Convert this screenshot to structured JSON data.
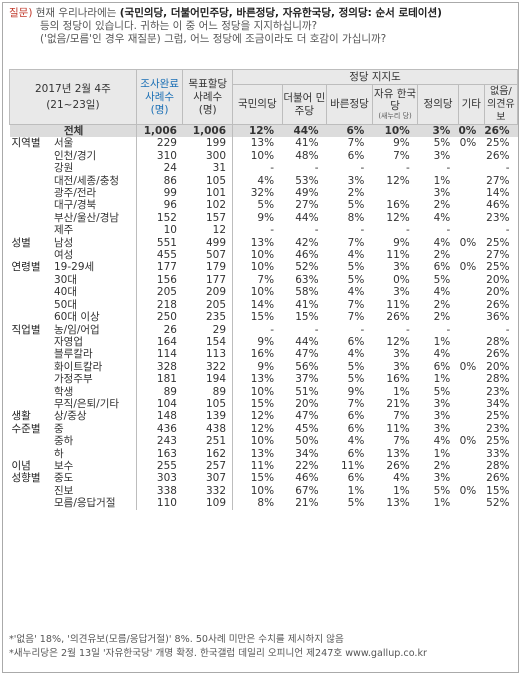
{
  "question": {
    "label": "질문)",
    "line1_pre": "현재 우리나라에는 ",
    "line1_strong": "(국민의당, 더불어민주당, 바른정당, 자유한국당, 정의당: 순서 로테이션)",
    "line2": "등의 정당이 있습니다. 귀하는 이 중 어느 정당을 지지하십니까?",
    "line3": "('없음/모름'인 경우 재질문) 그럼, 어느 정당에 조금이라도 더 호감이 가십니까?"
  },
  "header": {
    "date": "2017년 2월 4주",
    "date_range": "(21~23일)",
    "sample_done": "조사완료 사례수 (명)",
    "sample_target": "목표할당 사례수 (명)",
    "support_group": "정당 지지도",
    "parties": [
      "국민의당",
      "더불어 민주당",
      "바른정당",
      "자유 한국당",
      "정의당",
      "기타",
      "없음/ 의견유보"
    ],
    "saenuri_note": "(새누리 당)"
  },
  "rows": [
    {
      "cat": "",
      "sub": "전체",
      "n": "1,006",
      "t": "1,006",
      "v": [
        "12%",
        "44%",
        "6%",
        "10%",
        "3%",
        "0%",
        "26%"
      ],
      "total": true
    },
    {
      "cat": "지역별",
      "sub": "서울",
      "n": "229",
      "t": "199",
      "v": [
        "13%",
        "41%",
        "7%",
        "9%",
        "5%",
        "0%",
        "25%"
      ],
      "gstart": true
    },
    {
      "cat": "",
      "sub": "인천/경기",
      "n": "310",
      "t": "300",
      "v": [
        "10%",
        "48%",
        "6%",
        "7%",
        "3%",
        "",
        "26%"
      ]
    },
    {
      "cat": "",
      "sub": "강원",
      "n": "24",
      "t": "31",
      "v": [
        "-",
        "-",
        "-",
        "-",
        "-",
        "",
        "-"
      ]
    },
    {
      "cat": "",
      "sub": "대전/세종/충청",
      "n": "86",
      "t": "105",
      "v": [
        "4%",
        "53%",
        "3%",
        "12%",
        "1%",
        "",
        "27%"
      ]
    },
    {
      "cat": "",
      "sub": "광주/전라",
      "n": "99",
      "t": "101",
      "v": [
        "32%",
        "49%",
        "2%",
        "",
        "3%",
        "",
        "14%"
      ]
    },
    {
      "cat": "",
      "sub": "대구/경북",
      "n": "96",
      "t": "102",
      "v": [
        "5%",
        "27%",
        "5%",
        "16%",
        "2%",
        "",
        "46%"
      ]
    },
    {
      "cat": "",
      "sub": "부산/울산/경남",
      "n": "152",
      "t": "157",
      "v": [
        "9%",
        "44%",
        "8%",
        "12%",
        "4%",
        "",
        "23%"
      ]
    },
    {
      "cat": "",
      "sub": "제주",
      "n": "10",
      "t": "12",
      "v": [
        "-",
        "-",
        "-",
        "-",
        "-",
        "",
        "-"
      ]
    },
    {
      "cat": "성별",
      "sub": "남성",
      "n": "551",
      "t": "499",
      "v": [
        "13%",
        "42%",
        "7%",
        "9%",
        "4%",
        "0%",
        "25%"
      ],
      "gstart": true
    },
    {
      "cat": "",
      "sub": "여성",
      "n": "455",
      "t": "507",
      "v": [
        "10%",
        "46%",
        "4%",
        "11%",
        "2%",
        "",
        "27%"
      ]
    },
    {
      "cat": "연령별",
      "sub": "19-29세",
      "n": "177",
      "t": "179",
      "v": [
        "10%",
        "52%",
        "5%",
        "3%",
        "6%",
        "0%",
        "25%"
      ],
      "gstart": true
    },
    {
      "cat": "",
      "sub": "30대",
      "n": "156",
      "t": "177",
      "v": [
        "7%",
        "63%",
        "5%",
        "0%",
        "5%",
        "",
        "20%"
      ]
    },
    {
      "cat": "",
      "sub": "40대",
      "n": "205",
      "t": "209",
      "v": [
        "10%",
        "58%",
        "4%",
        "3%",
        "4%",
        "",
        "20%"
      ]
    },
    {
      "cat": "",
      "sub": "50대",
      "n": "218",
      "t": "205",
      "v": [
        "14%",
        "41%",
        "7%",
        "11%",
        "2%",
        "",
        "26%"
      ]
    },
    {
      "cat": "",
      "sub": "60대 이상",
      "n": "250",
      "t": "235",
      "v": [
        "15%",
        "15%",
        "7%",
        "26%",
        "2%",
        "",
        "36%"
      ]
    },
    {
      "cat": "직업별",
      "sub": "농/임/어업",
      "n": "26",
      "t": "29",
      "v": [
        "-",
        "-",
        "-",
        "-",
        "-",
        "",
        "-"
      ],
      "gstart": true
    },
    {
      "cat": "",
      "sub": "자영업",
      "n": "164",
      "t": "154",
      "v": [
        "9%",
        "44%",
        "6%",
        "12%",
        "1%",
        "",
        "28%"
      ]
    },
    {
      "cat": "",
      "sub": "블루칼라",
      "n": "114",
      "t": "113",
      "v": [
        "16%",
        "47%",
        "4%",
        "3%",
        "4%",
        "",
        "26%"
      ]
    },
    {
      "cat": "",
      "sub": "화이트칼라",
      "n": "328",
      "t": "322",
      "v": [
        "9%",
        "56%",
        "5%",
        "3%",
        "6%",
        "0%",
        "20%"
      ]
    },
    {
      "cat": "",
      "sub": "가정주부",
      "n": "181",
      "t": "194",
      "v": [
        "13%",
        "37%",
        "5%",
        "16%",
        "1%",
        "",
        "28%"
      ]
    },
    {
      "cat": "",
      "sub": "학생",
      "n": "89",
      "t": "89",
      "v": [
        "10%",
        "51%",
        "9%",
        "1%",
        "5%",
        "",
        "23%"
      ]
    },
    {
      "cat": "",
      "sub": "무직/은퇴/기타",
      "n": "104",
      "t": "105",
      "v": [
        "15%",
        "20%",
        "7%",
        "21%",
        "3%",
        "",
        "34%"
      ]
    },
    {
      "cat": "생활",
      "sub": "상/중상",
      "n": "148",
      "t": "139",
      "v": [
        "12%",
        "47%",
        "6%",
        "7%",
        "3%",
        "",
        "25%"
      ],
      "gstart": true
    },
    {
      "cat": "수준별",
      "sub": "중",
      "n": "436",
      "t": "438",
      "v": [
        "12%",
        "45%",
        "6%",
        "11%",
        "3%",
        "",
        "23%"
      ]
    },
    {
      "cat": "",
      "sub": "중하",
      "n": "243",
      "t": "251",
      "v": [
        "10%",
        "50%",
        "4%",
        "7%",
        "4%",
        "0%",
        "25%"
      ]
    },
    {
      "cat": "",
      "sub": "하",
      "n": "163",
      "t": "162",
      "v": [
        "13%",
        "34%",
        "6%",
        "13%",
        "1%",
        "",
        "33%"
      ]
    },
    {
      "cat": "이념",
      "sub": "보수",
      "n": "255",
      "t": "257",
      "v": [
        "11%",
        "22%",
        "11%",
        "26%",
        "2%",
        "",
        "28%"
      ],
      "gstart": true
    },
    {
      "cat": "성향별",
      "sub": "중도",
      "n": "303",
      "t": "307",
      "v": [
        "15%",
        "46%",
        "6%",
        "4%",
        "3%",
        "",
        "26%"
      ]
    },
    {
      "cat": "",
      "sub": "진보",
      "n": "338",
      "t": "332",
      "v": [
        "10%",
        "67%",
        "1%",
        "1%",
        "5%",
        "0%",
        "15%"
      ]
    },
    {
      "cat": "",
      "sub": "모름/응답거절",
      "n": "110",
      "t": "109",
      "v": [
        "8%",
        "21%",
        "5%",
        "13%",
        "1%",
        "",
        "52%"
      ]
    }
  ],
  "footnotes": [
    "*'없음' 18%, '의견유보(모름/응답거절)' 8%. 50사례 미만은 수치를 제시하지 않음",
    "*새누리당은 2월 13일 '자유한국당' 개명 확정. 한국갤럽 데일리 오피니언 제247호 www.gallup.co.kr"
  ]
}
